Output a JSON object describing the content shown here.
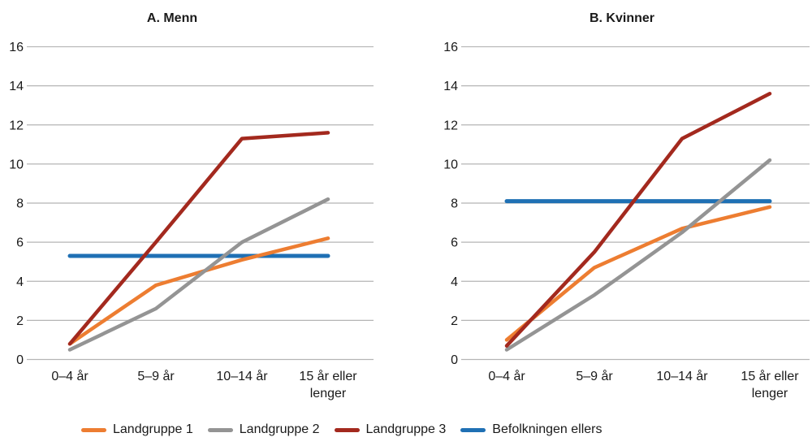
{
  "figure": {
    "background": "#ffffff"
  },
  "colors": {
    "landgruppe1": "#ED7D31",
    "landgruppe2": "#949494",
    "landgruppe3": "#A3291E",
    "befolkningen_ellers": "#1F70B4",
    "gridline": "#B5B5B5",
    "text": "#1A1A1A"
  },
  "legend": {
    "items": [
      {
        "label": "Landgruppe 1",
        "color_key": "landgruppe1"
      },
      {
        "label": "Landgruppe 2",
        "color_key": "landgruppe2"
      },
      {
        "label": "Landgruppe 3",
        "color_key": "landgruppe3"
      },
      {
        "label": "Befolkningen ellers",
        "color_key": "befolkningen_ellers"
      }
    ]
  },
  "chart_data": [
    {
      "type": "line",
      "title": "A. Menn",
      "categories": [
        "0–4 år",
        "5–9 år",
        "10–14 år",
        "15 år eller lenger"
      ],
      "series": [
        {
          "name": "Landgruppe 1",
          "color_key": "landgruppe1",
          "values": [
            0.8,
            3.8,
            5.1,
            6.2
          ]
        },
        {
          "name": "Landgruppe 2",
          "color_key": "landgruppe2",
          "values": [
            0.5,
            2.6,
            6.0,
            8.2
          ]
        },
        {
          "name": "Landgruppe 3",
          "color_key": "landgruppe3",
          "values": [
            0.8,
            6.0,
            11.3,
            11.6
          ]
        },
        {
          "name": "Befolkningen ellers",
          "color_key": "befolkningen_ellers",
          "values": [
            5.3,
            5.3,
            5.3,
            5.3
          ]
        }
      ],
      "ylim": [
        0,
        16
      ],
      "ytick_step": 2,
      "grid": true,
      "legend_position": "bottom-shared"
    },
    {
      "type": "line",
      "title": "B. Kvinner",
      "categories": [
        "0–4 år",
        "5–9 år",
        "10–14 år",
        "15 år eller lenger"
      ],
      "series": [
        {
          "name": "Landgruppe 1",
          "color_key": "landgruppe1",
          "values": [
            1.0,
            4.7,
            6.7,
            7.8
          ]
        },
        {
          "name": "Landgruppe 2",
          "color_key": "landgruppe2",
          "values": [
            0.5,
            3.3,
            6.5,
            10.2
          ]
        },
        {
          "name": "Landgruppe 3",
          "color_key": "landgruppe3",
          "values": [
            0.7,
            5.5,
            11.3,
            13.6
          ]
        },
        {
          "name": "Befolkningen ellers",
          "color_key": "befolkningen_ellers",
          "values": [
            8.1,
            8.1,
            8.1,
            8.1
          ]
        }
      ],
      "ylim": [
        0,
        16
      ],
      "ytick_step": 2,
      "grid": true,
      "legend_position": "bottom-shared"
    }
  ]
}
